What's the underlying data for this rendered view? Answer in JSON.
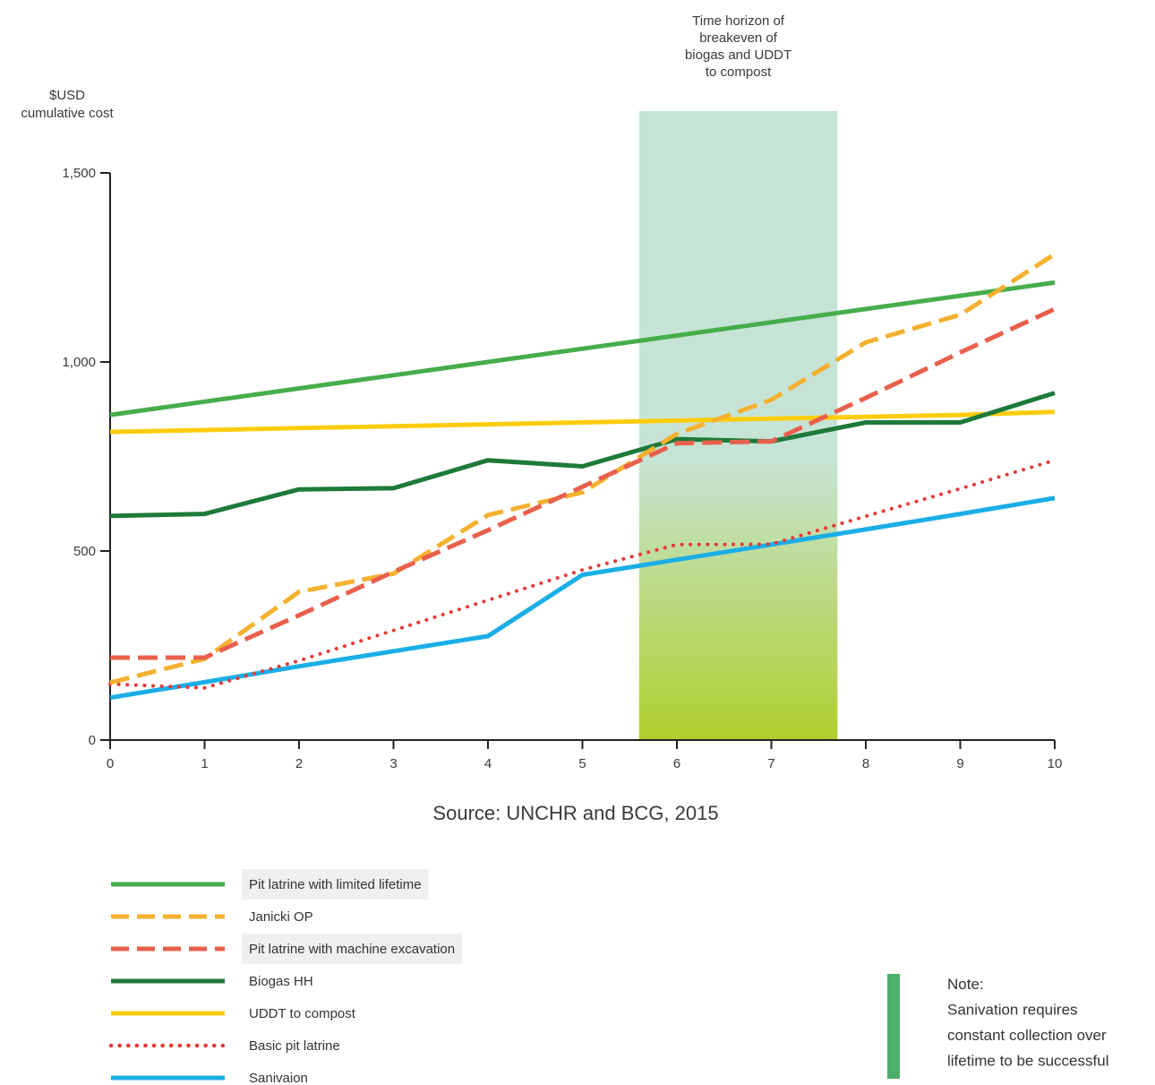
{
  "chart_data": {
    "type": "line",
    "ylabel": "$USD cumulative cost",
    "ylabel_lines": [
      "$USD",
      "cumulative cost"
    ],
    "x": [
      0,
      1,
      2,
      3,
      4,
      5,
      6,
      7,
      8,
      9,
      10
    ],
    "x_ticks": [
      "0",
      "1",
      "2",
      "3",
      "4",
      "5",
      "6",
      "7",
      "8",
      "9",
      "10"
    ],
    "y_ticks": [
      {
        "value": 0,
        "label": "0"
      },
      {
        "value": 500,
        "label": "500"
      },
      {
        "value": 1000,
        "label": "1,000"
      },
      {
        "value": 1500,
        "label": "1,500"
      }
    ],
    "xlim": [
      0,
      10
    ],
    "ylim": [
      0,
      1500
    ],
    "highlight_band": {
      "x_range": [
        5.6,
        7.7
      ],
      "label": "Time horizon of breakeven of biogas and UDDT to compost",
      "label_lines": [
        "Time horizon of",
        "breakeven of",
        "biogas and UDDT",
        "to compost"
      ],
      "color_top": "#c6e4d6",
      "color_bottom": "#b0cf2c"
    },
    "series": [
      {
        "key": "pit_limited",
        "name": "Pit latrine with limited lifetime",
        "style": "solid",
        "color": "#46ad4a",
        "highlight": true,
        "values": [
          860,
          895,
          930,
          965,
          1000,
          1035,
          1070,
          1105,
          1140,
          1175,
          1210
        ]
      },
      {
        "key": "janicki",
        "name": "Janicki OP",
        "style": "dashed",
        "color": "#f4b12f",
        "highlight": false,
        "values": [
          152,
          215,
          392,
          440,
          595,
          655,
          810,
          900,
          1052,
          1125,
          1285
        ]
      },
      {
        "key": "pit_machine",
        "name": "Pit latrine with machine excavation",
        "style": "dashed",
        "color": "#e8604b",
        "highlight": true,
        "values": [
          218,
          218,
          330,
          445,
          555,
          670,
          785,
          790,
          905,
          1025,
          1140
        ]
      },
      {
        "key": "biogas",
        "name": "Biogas HH",
        "style": "solid",
        "color": "#1d7a3a",
        "highlight": false,
        "values": [
          593,
          598,
          663,
          666,
          740,
          724,
          796,
          790,
          840,
          840,
          918
        ]
      },
      {
        "key": "uddt",
        "name": "UDDT to compost",
        "style": "solid",
        "color": "#fccc0a",
        "highlight": false,
        "values": [
          815,
          820,
          825,
          830,
          835,
          840,
          845,
          850,
          855,
          860,
          868
        ]
      },
      {
        "key": "basic_pit",
        "name": "Basic pit latrine",
        "style": "dotted",
        "color": "#e53935",
        "highlight": false,
        "values": [
          148,
          138,
          210,
          290,
          370,
          450,
          517,
          518,
          592,
          665,
          740
        ]
      },
      {
        "key": "sanivation",
        "name": "Sanivaion",
        "style": "solid",
        "color": "#1aaee6",
        "highlight": false,
        "values": [
          112,
          153,
          195,
          235,
          275,
          437,
          477,
          517,
          557,
          598,
          640
        ]
      }
    ],
    "grid": false,
    "legend_position": "bottom-left",
    "source": "Source: UNCHR and BCG, 2015"
  },
  "note": {
    "lines": [
      "Note:",
      "Sanivation requires",
      "constant collection over",
      "lifetime to be successful"
    ],
    "bar_color": "#4caf6a"
  }
}
